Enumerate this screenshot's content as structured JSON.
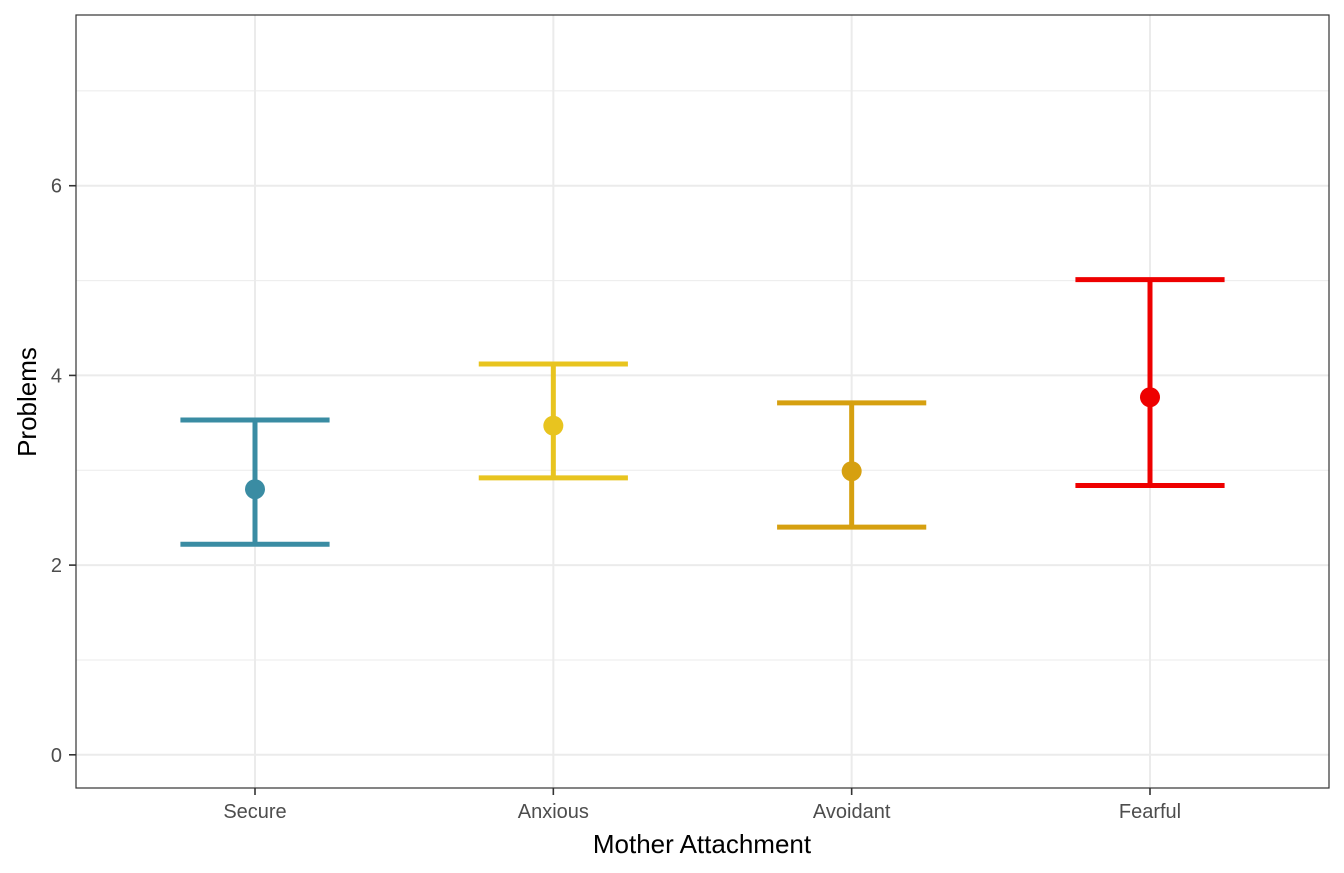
{
  "chart_data": {
    "type": "errorbar",
    "xlabel": "Mother Attachment",
    "ylabel": "Problems",
    "categories": [
      "Secure",
      "Anxious",
      "Avoidant",
      "Fearful"
    ],
    "values": [
      2.8,
      3.47,
      2.99,
      3.77
    ],
    "lower": [
      2.22,
      2.92,
      2.4,
      2.84
    ],
    "upper": [
      3.53,
      4.12,
      3.71,
      5.01
    ],
    "colors": [
      "#3a8ca3",
      "#e8c41f",
      "#d6a010",
      "#ee0000"
    ],
    "ylim": [
      -0.35,
      7.8
    ],
    "yticks": [
      0,
      2,
      4,
      6
    ],
    "ytick_labels": [
      "0",
      "2",
      "4",
      "6"
    ],
    "grid": true,
    "legend": "none"
  }
}
